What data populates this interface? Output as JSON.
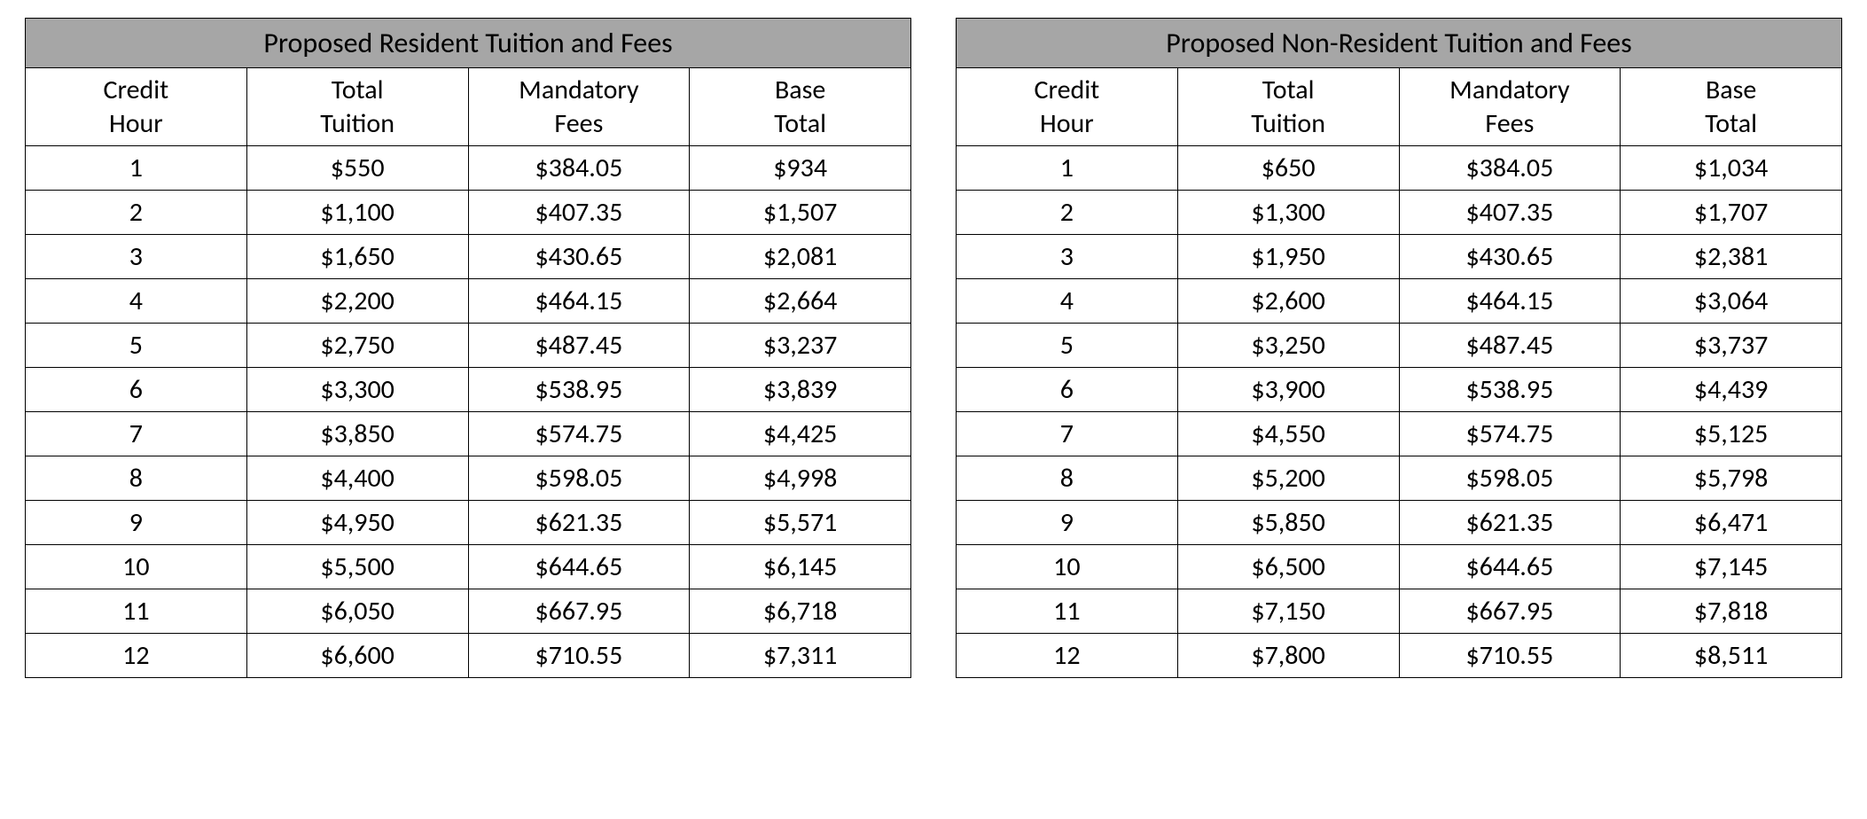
{
  "tables": [
    {
      "title": "Proposed Resident Tuition and Fees",
      "columns": [
        {
          "line1": "Credit",
          "line2": "Hour"
        },
        {
          "line1": "Total",
          "line2": "Tuition"
        },
        {
          "line1": "Mandatory",
          "line2": "Fees"
        },
        {
          "line1": "Base",
          "line2": "Total"
        }
      ],
      "rows": [
        [
          "1",
          "$550",
          "$384.05",
          "$934"
        ],
        [
          "2",
          "$1,100",
          "$407.35",
          "$1,507"
        ],
        [
          "3",
          "$1,650",
          "$430.65",
          "$2,081"
        ],
        [
          "4",
          "$2,200",
          "$464.15",
          "$2,664"
        ],
        [
          "5",
          "$2,750",
          "$487.45",
          "$3,237"
        ],
        [
          "6",
          "$3,300",
          "$538.95",
          "$3,839"
        ],
        [
          "7",
          "$3,850",
          "$574.75",
          "$4,425"
        ],
        [
          "8",
          "$4,400",
          "$598.05",
          "$4,998"
        ],
        [
          "9",
          "$4,950",
          "$621.35",
          "$5,571"
        ],
        [
          "10",
          "$5,500",
          "$644.65",
          "$6,145"
        ],
        [
          "11",
          "$6,050",
          "$667.95",
          "$6,718"
        ],
        [
          "12",
          "$6,600",
          "$710.55",
          "$7,311"
        ]
      ]
    },
    {
      "title": "Proposed Non-Resident Tuition and Fees",
      "columns": [
        {
          "line1": "Credit",
          "line2": "Hour"
        },
        {
          "line1": "Total",
          "line2": "Tuition"
        },
        {
          "line1": "Mandatory",
          "line2": "Fees"
        },
        {
          "line1": "Base",
          "line2": "Total"
        }
      ],
      "rows": [
        [
          "1",
          "$650",
          "$384.05",
          "$1,034"
        ],
        [
          "2",
          "$1,300",
          "$407.35",
          "$1,707"
        ],
        [
          "3",
          "$1,950",
          "$430.65",
          "$2,381"
        ],
        [
          "4",
          "$2,600",
          "$464.15",
          "$3,064"
        ],
        [
          "5",
          "$3,250",
          "$487.45",
          "$3,737"
        ],
        [
          "6",
          "$3,900",
          "$538.95",
          "$4,439"
        ],
        [
          "7",
          "$4,550",
          "$574.75",
          "$5,125"
        ],
        [
          "8",
          "$5,200",
          "$598.05",
          "$5,798"
        ],
        [
          "9",
          "$5,850",
          "$621.35",
          "$6,471"
        ],
        [
          "10",
          "$6,500",
          "$644.65",
          "$7,145"
        ],
        [
          "11",
          "$7,150",
          "$667.95",
          "$7,818"
        ],
        [
          "12",
          "$7,800",
          "$710.55",
          "$8,511"
        ]
      ]
    }
  ],
  "styling": {
    "header_bg": "#a6a6a6",
    "border_color": "#000000",
    "font_family": "Calibri",
    "title_fontsize": 32,
    "cell_fontsize": 30
  }
}
